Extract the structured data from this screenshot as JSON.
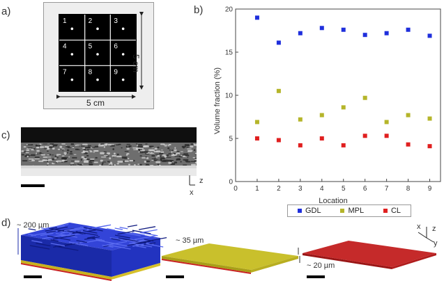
{
  "panels": {
    "a": {
      "label": "a)",
      "width_label": "5 cm",
      "height_label": "5 cm",
      "cells": [
        "1",
        "2",
        "3",
        "4",
        "5",
        "6",
        "7",
        "8",
        "9"
      ]
    },
    "b": {
      "label": "b)"
    },
    "c": {
      "label": "c)",
      "axis_z": "z",
      "axis_x": "x"
    },
    "d": {
      "label": "d)",
      "dim_gdl": "~ 200 µm",
      "dim_mpl": "~ 35 µm",
      "dim_cl": "~ 20 µm",
      "axis_x": "x",
      "axis_y": "y",
      "axis_z": "z"
    }
  },
  "colors": {
    "gdl": "#1f2fdc",
    "mpl": "#b5b52a",
    "cl": "#e02020"
  },
  "chart_data": {
    "type": "scatter",
    "title": "",
    "xlabel": "Location",
    "ylabel": "Volume fraction (%)",
    "xlim": [
      0,
      9.5
    ],
    "ylim": [
      0,
      20
    ],
    "xticks": [
      "0",
      "1",
      "2",
      "3",
      "4",
      "5",
      "6",
      "7",
      "8",
      "9"
    ],
    "yticks": [
      "0",
      "5",
      "10",
      "15",
      "20"
    ],
    "x": [
      1,
      2,
      3,
      4,
      5,
      6,
      7,
      8,
      9
    ],
    "series": [
      {
        "name": "GDL",
        "color": "#1f2fdc",
        "values": [
          19.0,
          16.1,
          17.2,
          17.8,
          17.6,
          17.0,
          17.2,
          17.6,
          16.9
        ]
      },
      {
        "name": "MPL",
        "color": "#b5b52a",
        "values": [
          6.9,
          10.5,
          7.2,
          7.7,
          8.6,
          9.7,
          6.9,
          7.7,
          7.3
        ]
      },
      {
        "name": "CL",
        "color": "#e02020",
        "values": [
          5.0,
          4.8,
          4.2,
          5.0,
          4.2,
          5.3,
          5.3,
          4.3,
          4.1
        ]
      }
    ],
    "legend": "bottom"
  }
}
